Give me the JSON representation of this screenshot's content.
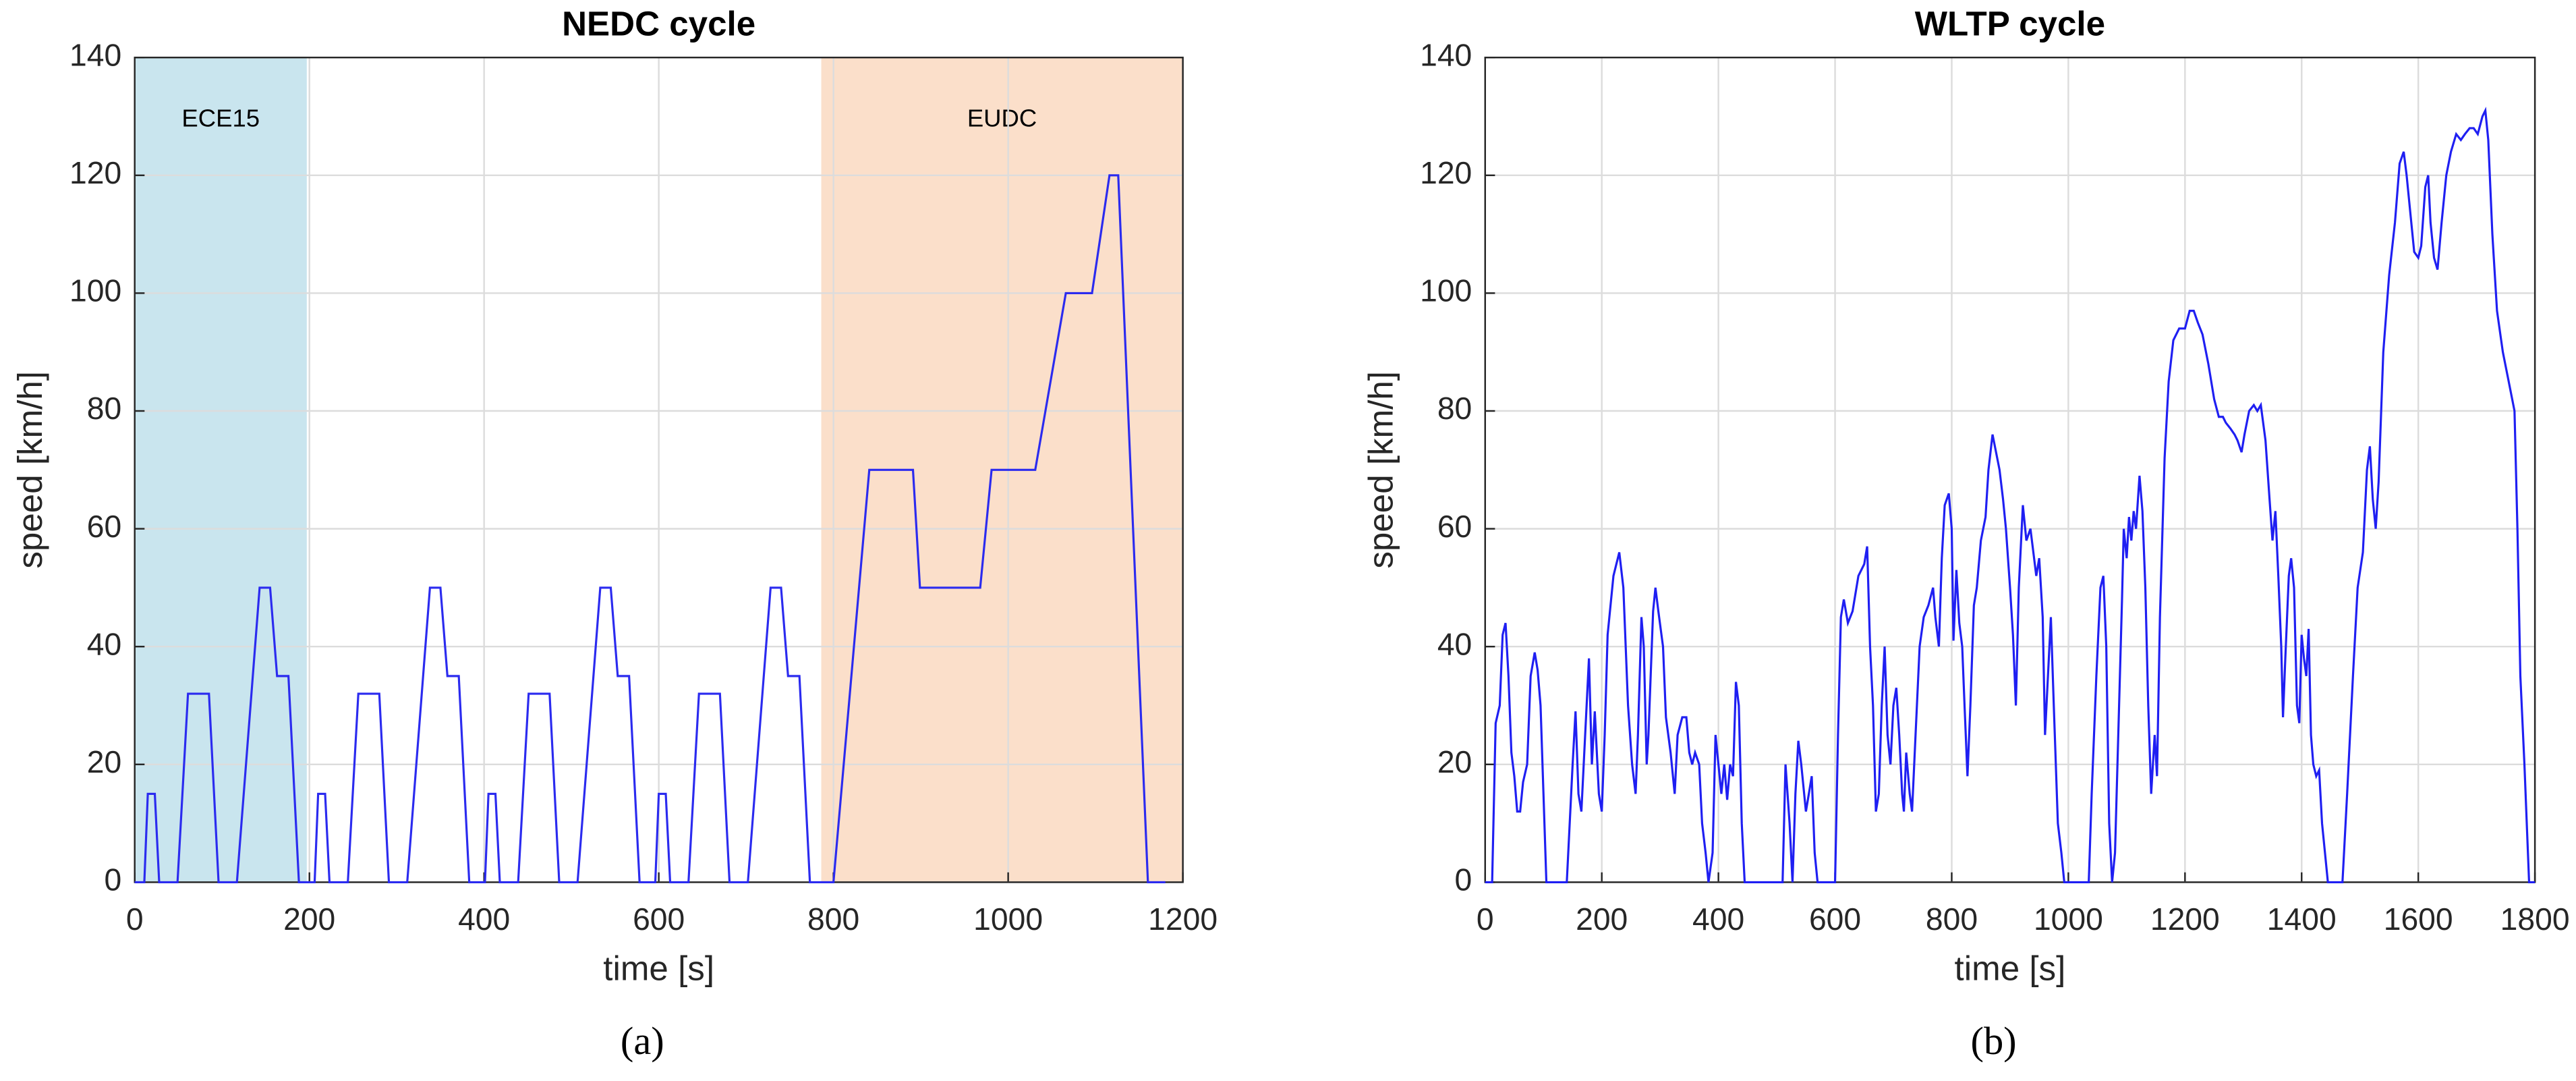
{
  "chart_data": [
    {
      "type": "line",
      "title": "NEDC cycle",
      "xlabel": "time [s]",
      "ylabel": "speed [km/h]",
      "caption": "(a)",
      "color": "#2b2bef",
      "grid": true,
      "xlim": [
        0,
        1200
      ],
      "ylim": [
        0,
        140
      ],
      "xticks": [
        0,
        200,
        400,
        600,
        800,
        1000,
        1200
      ],
      "yticks": [
        0,
        20,
        40,
        60,
        80,
        100,
        120,
        140
      ],
      "regions": [
        {
          "label": "ECE15",
          "xlim": [
            0,
            197
          ],
          "color": "#c9e5ee"
        },
        {
          "label": "EUDC",
          "xlim": [
            786,
            1200
          ],
          "color": "#fbdfca"
        }
      ],
      "x": [
        0,
        11,
        15,
        23,
        28,
        49,
        61,
        85,
        96,
        117,
        143,
        155,
        163,
        176,
        188,
        206,
        210,
        218,
        223,
        244,
        256,
        280,
        291,
        312,
        338,
        350,
        358,
        371,
        383,
        401,
        405,
        413,
        418,
        439,
        451,
        475,
        486,
        507,
        533,
        545,
        553,
        566,
        578,
        596,
        600,
        608,
        613,
        634,
        646,
        670,
        681,
        702,
        728,
        740,
        748,
        761,
        773,
        800,
        841,
        891,
        899,
        968,
        981,
        1031,
        1066,
        1096,
        1116,
        1126,
        1160,
        1180
      ],
      "values": [
        0,
        0,
        15,
        15,
        0,
        0,
        32,
        32,
        0,
        0,
        50,
        50,
        35,
        35,
        0,
        0,
        15,
        15,
        0,
        0,
        32,
        32,
        0,
        0,
        50,
        50,
        35,
        35,
        0,
        0,
        15,
        15,
        0,
        0,
        32,
        32,
        0,
        0,
        50,
        50,
        35,
        35,
        0,
        0,
        15,
        15,
        0,
        0,
        32,
        32,
        0,
        0,
        50,
        50,
        35,
        35,
        0,
        0,
        70,
        70,
        50,
        50,
        70,
        70,
        100,
        100,
        120,
        120,
        0,
        0
      ]
    },
    {
      "type": "line",
      "title": "WLTP cycle",
      "xlabel": "time [s]",
      "ylabel": "speed [km/h]",
      "caption": "(b)",
      "color": "#1f1ff2",
      "grid": true,
      "xlim": [
        0,
        1800
      ],
      "ylim": [
        0,
        140
      ],
      "xticks": [
        0,
        200,
        400,
        600,
        800,
        1000,
        1200,
        1400,
        1600,
        1800
      ],
      "yticks": [
        0,
        20,
        40,
        60,
        80,
        100,
        120,
        140
      ],
      "x": [
        0,
        12,
        18,
        25,
        30,
        35,
        40,
        45,
        50,
        55,
        60,
        65,
        72,
        78,
        85,
        90,
        95,
        100,
        105,
        140,
        150,
        155,
        160,
        165,
        170,
        178,
        183,
        188,
        195,
        200,
        205,
        210,
        220,
        230,
        237,
        245,
        252,
        258,
        262,
        268,
        272,
        277,
        280,
        288,
        292,
        297,
        305,
        310,
        318,
        325,
        330,
        338,
        345,
        350,
        355,
        360,
        367,
        372,
        378,
        383,
        390,
        395,
        400,
        405,
        410,
        415,
        420,
        425,
        430,
        435,
        440,
        445,
        510,
        515,
        522,
        527,
        532,
        537,
        542,
        550,
        555,
        560,
        565,
        570,
        600,
        605,
        610,
        615,
        622,
        630,
        640,
        650,
        655,
        660,
        665,
        670,
        675,
        680,
        685,
        690,
        695,
        700,
        705,
        710,
        715,
        718,
        722,
        728,
        732,
        738,
        745,
        752,
        760,
        768,
        772,
        778,
        783,
        788,
        795,
        800,
        803,
        808,
        813,
        818,
        822,
        827,
        832,
        838,
        843,
        850,
        858,
        863,
        870,
        878,
        882,
        888,
        893,
        900,
        905,
        910,
        915,
        922,
        928,
        935,
        940,
        945,
        950,
        956,
        960,
        965,
        970,
        975,
        982,
        988,
        993,
        1035,
        1040,
        1048,
        1055,
        1060,
        1065,
        1070,
        1075,
        1080,
        1087,
        1092,
        1095,
        1100,
        1104,
        1108,
        1112,
        1116,
        1122,
        1127,
        1132,
        1137,
        1142,
        1145,
        1148,
        1152,
        1157,
        1165,
        1172,
        1180,
        1190,
        1200,
        1208,
        1215,
        1222,
        1230,
        1240,
        1250,
        1258,
        1265,
        1270,
        1278,
        1285,
        1290,
        1297,
        1302,
        1310,
        1318,
        1324,
        1330,
        1338,
        1345,
        1350,
        1355,
        1360,
        1365,
        1368,
        1372,
        1378,
        1382,
        1387,
        1392,
        1396,
        1400,
        1404,
        1408,
        1412,
        1416,
        1420,
        1425,
        1430,
        1435,
        1440,
        1445,
        1470,
        1478,
        1488,
        1496,
        1505,
        1512,
        1517,
        1522,
        1527,
        1532,
        1540,
        1550,
        1560,
        1568,
        1575,
        1580,
        1587,
        1593,
        1600,
        1605,
        1612,
        1617,
        1621,
        1627,
        1633,
        1640,
        1648,
        1656,
        1665,
        1673,
        1680,
        1688,
        1695,
        1702,
        1710,
        1715,
        1720,
        1727,
        1735,
        1745,
        1755,
        1765,
        1770,
        1775,
        1782,
        1788,
        1790,
        1800
      ],
      "values": [
        0,
        0,
        27,
        30,
        42,
        44,
        35,
        22,
        18,
        12,
        12,
        17,
        20,
        35,
        39,
        36,
        30,
        15,
        0,
        0,
        20,
        29,
        15,
        12,
        22,
        38,
        20,
        29,
        15,
        12,
        25,
        42,
        52,
        56,
        50,
        30,
        20,
        15,
        25,
        45,
        40,
        20,
        25,
        46,
        50,
        46,
        40,
        28,
        22,
        15,
        25,
        28,
        28,
        22,
        20,
        22,
        20,
        10,
        5,
        0,
        5,
        25,
        20,
        15,
        20,
        14,
        20,
        18,
        34,
        30,
        10,
        0,
        0,
        20,
        10,
        0,
        15,
        24,
        20,
        12,
        15,
        18,
        5,
        0,
        0,
        25,
        45,
        48,
        44,
        46,
        52,
        54,
        57,
        40,
        30,
        12,
        15,
        30,
        40,
        25,
        20,
        30,
        33,
        25,
        15,
        12,
        22,
        15,
        12,
        25,
        40,
        45,
        47,
        50,
        45,
        40,
        55,
        64,
        66,
        60,
        41,
        53,
        44,
        40,
        30,
        18,
        30,
        47,
        50,
        58,
        62,
        70,
        76,
        72,
        70,
        65,
        60,
        50,
        42,
        30,
        50,
        64,
        58,
        60,
        56,
        52,
        55,
        45,
        25,
        35,
        45,
        30,
        10,
        5,
        0,
        0,
        15,
        35,
        50,
        52,
        40,
        10,
        0,
        5,
        30,
        48,
        60,
        55,
        62,
        58,
        63,
        60,
        69,
        63,
        50,
        30,
        15,
        20,
        25,
        18,
        45,
        72,
        85,
        92,
        94,
        94,
        97,
        97,
        95,
        93,
        88,
        82,
        79,
        79,
        78,
        77,
        76,
        75,
        73,
        76,
        80,
        81,
        80,
        81,
        75,
        65,
        58,
        63,
        52,
        40,
        28,
        38,
        52,
        55,
        50,
        30,
        27,
        42,
        38,
        35,
        43,
        25,
        20,
        18,
        19,
        10,
        5,
        0,
        0,
        15,
        35,
        50,
        56,
        70,
        74,
        65,
        60,
        68,
        90,
        103,
        112,
        122,
        124,
        120,
        113,
        107,
        106,
        108,
        118,
        120,
        112,
        106,
        104,
        112,
        120,
        124,
        127,
        126,
        127,
        128,
        128,
        127,
        130,
        131,
        126,
        110,
        97,
        90,
        85,
        80,
        60,
        35,
        20,
        5,
        0,
        0
      ]
    }
  ]
}
